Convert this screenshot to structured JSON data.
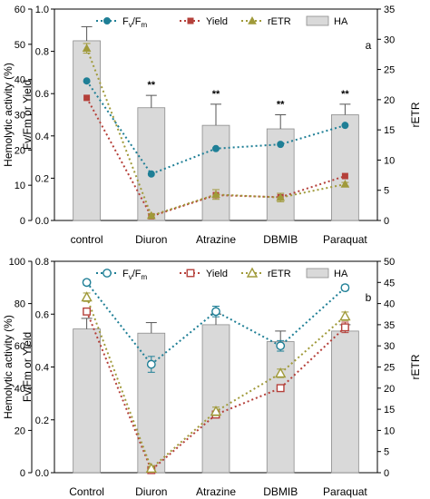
{
  "colors": {
    "fvfm": "#1f7f96",
    "yield": "#b5403a",
    "retr": "#a09a3a",
    "bar_fill": "#d9d9d9",
    "bar_stroke": "#8c8c8c"
  },
  "chart_data": [
    {
      "type": "bar",
      "panel_label": "a",
      "categories": [
        "control",
        "Diuron",
        "Atrazine",
        "DBMIB",
        "Paraquat"
      ],
      "ylabel_left": "Hemolytic activity (%)",
      "ylabel_mid": "Fv/Fm or Yield",
      "ylabel_right": "rETR",
      "ylim_left": [
        0,
        60
      ],
      "ylim_mid": [
        0,
        1.0
      ],
      "ylim_right": [
        0,
        35
      ],
      "ticks_left": [
        "0",
        "10",
        "20",
        "30",
        "40",
        "50",
        "60"
      ],
      "ticks_mid": [
        "0.0",
        "0.2",
        "0.4",
        "0.6",
        "0.8",
        "1.0"
      ],
      "ticks_right": [
        "0",
        "5",
        "10",
        "15",
        "20",
        "25",
        "30",
        "35"
      ],
      "legend": {
        "fvfm": "Fv/Fm",
        "yield": "Yield",
        "retr": "rETR",
        "ha": "HA"
      },
      "markers": "filled",
      "series": [
        {
          "name": "HA",
          "axis": "left",
          "values": [
            51,
            32,
            27,
            26,
            30
          ],
          "errors": [
            4,
            3.5,
            6,
            4,
            3
          ]
        },
        {
          "name": "Fv/Fm",
          "axis": "mid",
          "values": [
            0.66,
            0.22,
            0.34,
            0.36,
            0.45
          ],
          "errors": [
            0,
            0,
            0,
            0,
            0
          ]
        },
        {
          "name": "Yield",
          "axis": "mid",
          "values": [
            0.58,
            0.02,
            0.12,
            0.11,
            0.21
          ],
          "errors": [
            0,
            0,
            0,
            0,
            0
          ]
        },
        {
          "name": "rETR",
          "axis": "right",
          "values": [
            28.5,
            0.8,
            4.3,
            3.8,
            6.0
          ],
          "errors": [
            0.8,
            0.3,
            0.8,
            0.7,
            0.3
          ]
        }
      ],
      "annotations": [
        "",
        "**",
        "**",
        "**",
        "**"
      ]
    },
    {
      "type": "bar",
      "panel_label": "b",
      "categories": [
        "Control",
        "Diuron",
        "Atrazine",
        "DBMIB",
        "Paraquat"
      ],
      "ylabel_left": "Hemolytic activity (%)",
      "ylabel_mid": "Fv/Fm or Yield",
      "ylabel_right": "rETR",
      "ylim_left": [
        0,
        100
      ],
      "ylim_mid": [
        0,
        0.8
      ],
      "ylim_right": [
        0,
        50
      ],
      "ticks_left": [
        "0",
        "20",
        "40",
        "60",
        "80",
        "100"
      ],
      "ticks_mid": [
        "0.0",
        "0.2",
        "0.4",
        "0.6",
        "0.8"
      ],
      "ticks_right": [
        "0",
        "5",
        "10",
        "15",
        "20",
        "25",
        "30",
        "35",
        "40",
        "45",
        "50"
      ],
      "legend": {
        "fvfm": "Fv/Fm",
        "yield": "Yield",
        "retr": "rETR",
        "ha": "HA"
      },
      "markers": "open",
      "series": [
        {
          "name": "HA",
          "axis": "left",
          "values": [
            68,
            66,
            70,
            62,
            67
          ],
          "errors": [
            5,
            5,
            5,
            5,
            3
          ]
        },
        {
          "name": "Fv/Fm",
          "axis": "mid",
          "values": [
            0.72,
            0.41,
            0.61,
            0.48,
            0.7
          ],
          "errors": [
            0.01,
            0.03,
            0.02,
            0.02,
            0.01
          ]
        },
        {
          "name": "Yield",
          "axis": "mid",
          "values": [
            0.61,
            0.01,
            0.22,
            0.32,
            0.55
          ],
          "errors": [
            0.01,
            0.005,
            0.01,
            0.01,
            0.02
          ]
        },
        {
          "name": "rETR",
          "axis": "right",
          "values": [
            41.5,
            1.0,
            14.5,
            23.5,
            37.0
          ],
          "errors": [
            1.0,
            0.5,
            1.0,
            1.0,
            1.0
          ]
        }
      ],
      "annotations": [
        "",
        "",
        "",
        "",
        ""
      ]
    }
  ]
}
